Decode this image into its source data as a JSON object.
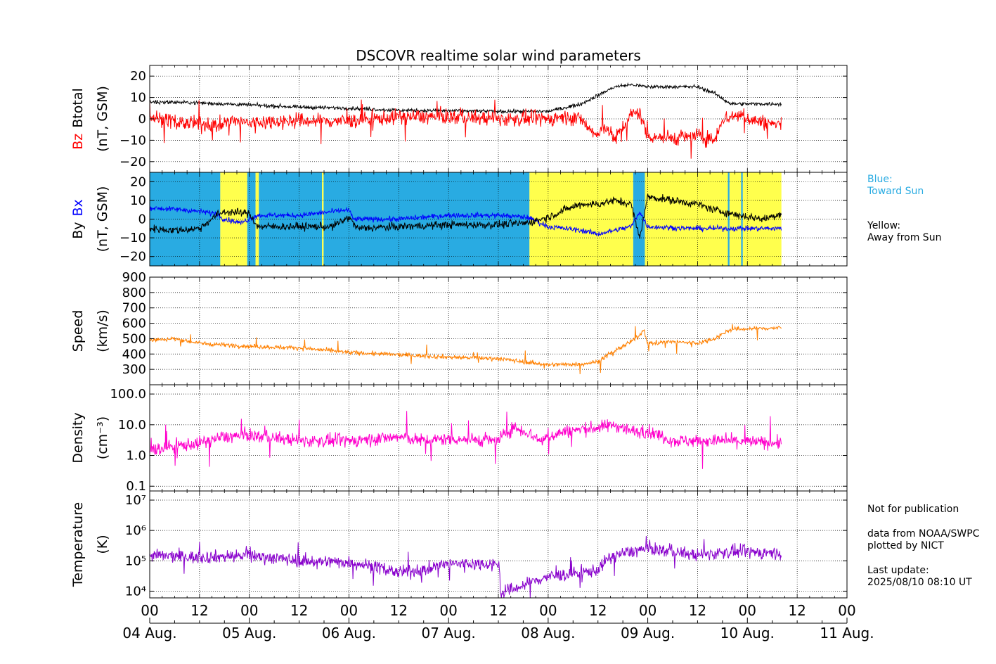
{
  "title": "DSCOVR realtime solar wind parameters",
  "colors": {
    "bz": "#ff0000",
    "bt": "#000000",
    "bx": "#0000ff",
    "by": "#000000",
    "speed": "#ff8000",
    "density": "#ff00cc",
    "temperature": "#8800cc",
    "toward_sun": "#29abe2",
    "away_from_sun": "#ffff4d"
  },
  "legend_notes": {
    "blue_label": "Blue:",
    "blue_desc": "Toward Sun",
    "yellow_label": "Yellow:",
    "yellow_desc": "Away from Sun"
  },
  "footnotes": {
    "not_for_publication": "Not for publication",
    "source_line1": "data from NOAA/SWPC",
    "source_line2": "plotted by NICT",
    "last_update_label": "Last update:",
    "last_update_value": "2025/08/10 08:10 UT"
  },
  "x_axis": {
    "hour_ticks": [
      "00",
      "12",
      "00",
      "12",
      "00",
      "12",
      "00",
      "12",
      "00",
      "12",
      "00",
      "12",
      "00",
      "12",
      "00"
    ],
    "date_labels": [
      "04 Aug.",
      "05 Aug.",
      "06 Aug.",
      "07 Aug.",
      "08 Aug.",
      "09 Aug.",
      "10 Aug.",
      "11 Aug."
    ],
    "range_hours": [
      0,
      168
    ],
    "data_end_hours": 152.2
  },
  "chart_data": [
    {
      "id": "b",
      "type": "line",
      "ylabel_parts": [
        "Bz",
        "Btotal"
      ],
      "yunit": "(nT, GSM)",
      "ylim": [
        -25,
        25
      ],
      "yticks": [
        -20,
        -10,
        0,
        10,
        20
      ],
      "ytick_labels": [
        "−20",
        "−10",
        "0",
        "10",
        "20"
      ],
      "grid": true,
      "series": [
        {
          "name": "Btotal",
          "color_key": "bt",
          "noise": 0.6,
          "spike": 0.0,
          "points": [
            [
              0,
              8
            ],
            [
              12,
              7.5
            ],
            [
              24,
              6.5
            ],
            [
              36,
              5.5
            ],
            [
              48,
              5
            ],
            [
              60,
              4
            ],
            [
              72,
              3.8
            ],
            [
              84,
              3.5
            ],
            [
              96,
              3.5
            ],
            [
              104,
              7
            ],
            [
              108,
              11
            ],
            [
              112,
              15
            ],
            [
              116,
              16
            ],
            [
              120,
              15
            ],
            [
              126,
              15
            ],
            [
              132,
              15
            ],
            [
              136,
              12
            ],
            [
              140,
              7
            ],
            [
              152,
              7
            ]
          ]
        },
        {
          "name": "Bz",
          "color_key": "bz",
          "noise": 2.5,
          "spike": 6,
          "points": [
            [
              0,
              1
            ],
            [
              8,
              -2
            ],
            [
              16,
              -3
            ],
            [
              20,
              -1
            ],
            [
              24,
              -2
            ],
            [
              30,
              -1
            ],
            [
              36,
              -1
            ],
            [
              48,
              -1
            ],
            [
              60,
              1
            ],
            [
              72,
              1
            ],
            [
              84,
              0
            ],
            [
              96,
              0
            ],
            [
              100,
              1
            ],
            [
              104,
              0
            ],
            [
              106,
              -5
            ],
            [
              108,
              -8
            ],
            [
              110,
              -3
            ],
            [
              112,
              -10
            ],
            [
              114,
              -4
            ],
            [
              116,
              2
            ],
            [
              118,
              3
            ],
            [
              120,
              -8
            ],
            [
              126,
              -9
            ],
            [
              132,
              -8
            ],
            [
              136,
              -10
            ],
            [
              138,
              0
            ],
            [
              142,
              2
            ],
            [
              146,
              -1
            ],
            [
              152,
              -3
            ]
          ]
        }
      ]
    },
    {
      "id": "bxy",
      "type": "line",
      "ylabel_parts": [
        "By",
        "Bx"
      ],
      "yunit": "(nT, GSM)",
      "ylim": [
        -25,
        25
      ],
      "yticks": [
        -20,
        -10,
        0,
        10,
        20
      ],
      "ytick_labels": [
        "−20",
        "−10",
        "0",
        "10",
        "20"
      ],
      "grid": true,
      "sector_bands": [
        {
          "start": 0,
          "end": 17,
          "sector": "toward"
        },
        {
          "start": 17,
          "end": 23.5,
          "sector": "away"
        },
        {
          "start": 23.5,
          "end": 25.5,
          "sector": "toward"
        },
        {
          "start": 25.5,
          "end": 26.3,
          "sector": "away"
        },
        {
          "start": 26.3,
          "end": 41.5,
          "sector": "toward"
        },
        {
          "start": 41.5,
          "end": 41.9,
          "sector": "away"
        },
        {
          "start": 41.9,
          "end": 91.5,
          "sector": "toward"
        },
        {
          "start": 91.5,
          "end": 116.5,
          "sector": "away"
        },
        {
          "start": 116.5,
          "end": 119.3,
          "sector": "toward"
        },
        {
          "start": 119.3,
          "end": 139.3,
          "sector": "away"
        },
        {
          "start": 139.3,
          "end": 139.7,
          "sector": "toward"
        },
        {
          "start": 139.7,
          "end": 142.5,
          "sector": "away"
        },
        {
          "start": 142.5,
          "end": 142.9,
          "sector": "toward"
        },
        {
          "start": 142.9,
          "end": 152.2,
          "sector": "away"
        }
      ],
      "series": [
        {
          "name": "Bx",
          "color_key": "bx",
          "noise": 1.0,
          "spike": 0.0,
          "points": [
            [
              0,
              6
            ],
            [
              8,
              5
            ],
            [
              16,
              3
            ],
            [
              18,
              0
            ],
            [
              22,
              -2
            ],
            [
              26,
              2
            ],
            [
              36,
              2
            ],
            [
              48,
              5
            ],
            [
              49,
              0
            ],
            [
              60,
              0
            ],
            [
              72,
              2
            ],
            [
              84,
              2
            ],
            [
              91,
              1
            ],
            [
              96,
              -4
            ],
            [
              104,
              -6
            ],
            [
              108,
              -8
            ],
            [
              112,
              -6
            ],
            [
              116,
              -4
            ],
            [
              118,
              4
            ],
            [
              120,
              -4
            ],
            [
              130,
              -5
            ],
            [
              140,
              -5
            ],
            [
              152,
              -5
            ]
          ]
        },
        {
          "name": "By",
          "color_key": "by",
          "noise": 1.5,
          "spike": 0.0,
          "points": [
            [
              0,
              -5
            ],
            [
              6,
              -6
            ],
            [
              12,
              -5
            ],
            [
              16,
              2
            ],
            [
              18,
              4
            ],
            [
              24,
              3
            ],
            [
              26,
              -4
            ],
            [
              36,
              -4
            ],
            [
              44,
              -4
            ],
            [
              48,
              1
            ],
            [
              50,
              -5
            ],
            [
              60,
              -4
            ],
            [
              72,
              -3
            ],
            [
              84,
              -3
            ],
            [
              91,
              -2
            ],
            [
              96,
              1
            ],
            [
              100,
              5
            ],
            [
              104,
              8
            ],
            [
              108,
              8
            ],
            [
              112,
              10
            ],
            [
              116,
              8
            ],
            [
              118,
              -10
            ],
            [
              120,
              12
            ],
            [
              126,
              10
            ],
            [
              132,
              8
            ],
            [
              136,
              5
            ],
            [
              142,
              2
            ],
            [
              148,
              0
            ],
            [
              152,
              3
            ]
          ]
        }
      ]
    },
    {
      "id": "speed",
      "type": "line",
      "ylabel_parts": [
        "Speed"
      ],
      "yunit": "(km/s)",
      "ylim": [
        200,
        900
      ],
      "yticks": [
        300,
        400,
        500,
        600,
        700,
        800,
        900
      ],
      "ytick_labels": [
        "300",
        "400",
        "500",
        "600",
        "700",
        "800",
        "900"
      ],
      "grid": true,
      "series": [
        {
          "name": "Speed",
          "color_key": "speed",
          "noise": 10,
          "spike": 45,
          "points": [
            [
              0,
              490
            ],
            [
              6,
              500
            ],
            [
              12,
              470
            ],
            [
              18,
              460
            ],
            [
              24,
              450
            ],
            [
              36,
              440
            ],
            [
              48,
              410
            ],
            [
              60,
              395
            ],
            [
              72,
              380
            ],
            [
              84,
              370
            ],
            [
              90,
              350
            ],
            [
              96,
              330
            ],
            [
              104,
              335
            ],
            [
              108,
              350
            ],
            [
              112,
              420
            ],
            [
              116,
              480
            ],
            [
              118,
              520
            ],
            [
              119,
              560
            ],
            [
              120,
              470
            ],
            [
              126,
              480
            ],
            [
              132,
              470
            ],
            [
              136,
              500
            ],
            [
              140,
              560
            ],
            [
              152,
              570
            ]
          ]
        }
      ]
    },
    {
      "id": "density",
      "type": "line",
      "scale": "log",
      "ylabel_parts": [
        "Density"
      ],
      "yunit": "(cm⁻³)",
      "ylim": [
        0.07,
        200
      ],
      "yticks": [
        0.1,
        1,
        10,
        100
      ],
      "ytick_labels": [
        "0.1",
        "1.0",
        "10.0",
        "100.0"
      ],
      "grid": true,
      "series": [
        {
          "name": "Density",
          "color_key": "density",
          "noise": 0.15,
          "spike": 0.9,
          "points": [
            [
              0,
              1.5
            ],
            [
              6,
              2
            ],
            [
              12,
              2.5
            ],
            [
              18,
              4
            ],
            [
              24,
              4.5
            ],
            [
              36,
              3
            ],
            [
              48,
              3
            ],
            [
              60,
              4
            ],
            [
              66,
              3
            ],
            [
              72,
              3.5
            ],
            [
              84,
              3
            ],
            [
              88,
              8
            ],
            [
              94,
              3
            ],
            [
              100,
              6
            ],
            [
              108,
              8
            ],
            [
              112,
              10
            ],
            [
              116,
              6
            ],
            [
              120,
              6
            ],
            [
              126,
              3
            ],
            [
              132,
              3
            ],
            [
              140,
              3
            ],
            [
              152,
              2.5
            ]
          ]
        }
      ]
    },
    {
      "id": "temperature",
      "type": "line",
      "scale": "log",
      "ylabel_parts": [
        "Temperature"
      ],
      "yunit": "(K)",
      "ylim": [
        6000,
        20000000
      ],
      "yticks": [
        10000,
        100000,
        1000000,
        10000000
      ],
      "ytick_labels": [
        "10⁴",
        "10⁵",
        "10⁶",
        "10⁷"
      ],
      "grid": true,
      "series": [
        {
          "name": "Temperature",
          "color_key": "temperature",
          "noise": 0.15,
          "spike": 0.7,
          "points": [
            [
              0,
              150000
            ],
            [
              12,
              130000
            ],
            [
              24,
              150000
            ],
            [
              36,
              100000
            ],
            [
              48,
              90000
            ],
            [
              60,
              40000
            ],
            [
              66,
              50000
            ],
            [
              72,
              80000
            ],
            [
              84,
              80000
            ],
            [
              84.5,
              8000
            ],
            [
              90,
              15000
            ],
            [
              96,
              30000
            ],
            [
              104,
              40000
            ],
            [
              108,
              50000
            ],
            [
              112,
              150000
            ],
            [
              120,
              250000
            ],
            [
              126,
              200000
            ],
            [
              132,
              150000
            ],
            [
              140,
              200000
            ],
            [
              152,
              180000
            ]
          ]
        }
      ]
    }
  ]
}
